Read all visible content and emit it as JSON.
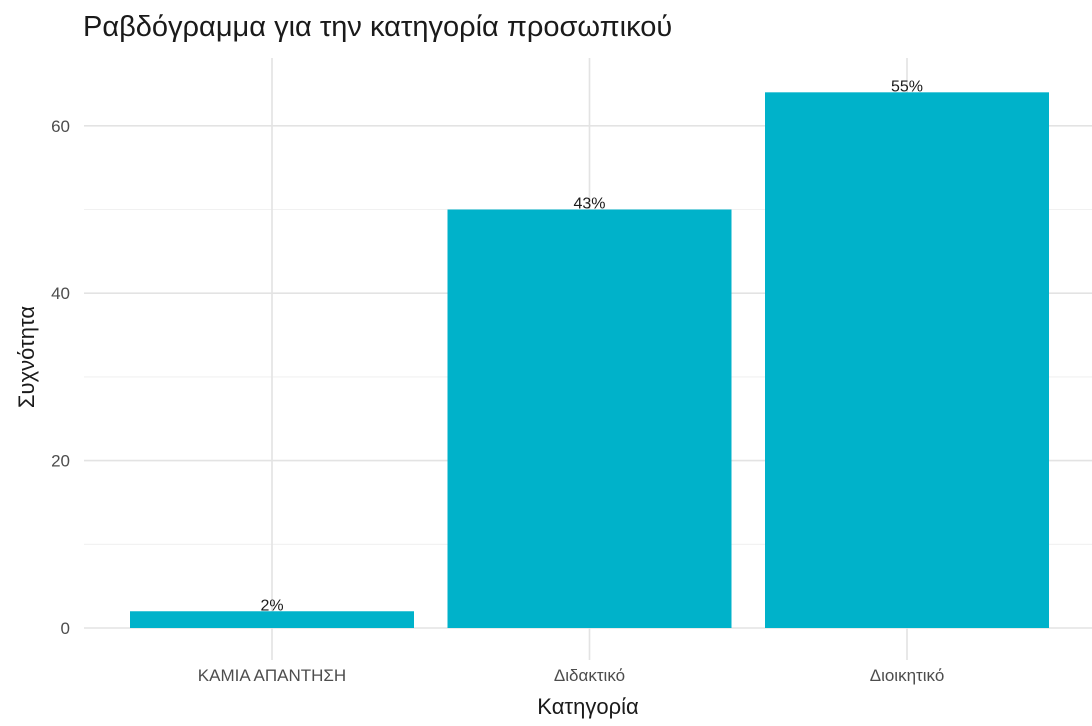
{
  "chart_data": {
    "type": "bar",
    "title": "Ραβδόγραμμα για την κατηγορία προσωπικού",
    "xlabel": "Κατηγορία",
    "ylabel": "Συχνότητα",
    "categories": [
      "ΚΑΜΙΑ ΑΠΑΝΤΗΣΗ",
      "Διδακτικό",
      "Διοικητικό"
    ],
    "values": [
      2,
      50,
      64
    ],
    "data_labels": [
      "2%",
      "43%",
      "55%"
    ],
    "y_ticks": [
      0,
      20,
      40,
      60
    ],
    "ylim": [
      0,
      67
    ],
    "grid": true,
    "bar_color": "#00B2CA"
  }
}
